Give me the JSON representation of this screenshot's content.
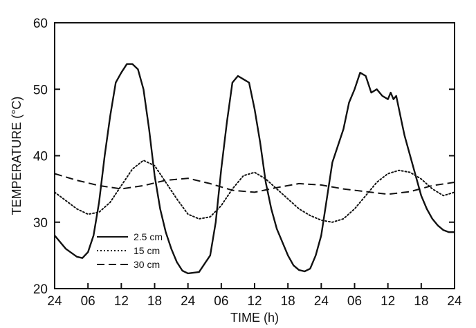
{
  "chart_data": {
    "type": "line",
    "xlabel": "TIME (h)",
    "ylabel": "TEMPERATURE (°C)",
    "ylim": [
      20,
      60
    ],
    "xlim": [
      0,
      72
    ],
    "x_tick_labels": [
      "24",
      "06",
      "12",
      "18",
      "24",
      "06",
      "12",
      "18",
      "24",
      "06",
      "12",
      "18",
      "24"
    ],
    "y_tick_labels": [
      "20",
      "30",
      "40",
      "50",
      "60"
    ],
    "grid": false,
    "legend_position": "lower-left",
    "series": [
      {
        "name": "2.5 cm",
        "style": "solid",
        "color": "#111111",
        "x": [
          0,
          2,
          4,
          5,
          6,
          7,
          8,
          9,
          10,
          11,
          12,
          13,
          14,
          15,
          16,
          17,
          18,
          19,
          20,
          21,
          22,
          23,
          24,
          26,
          28,
          29,
          30,
          31,
          32,
          33,
          34,
          35,
          36,
          37,
          38,
          38.5,
          39,
          39.5,
          40,
          41,
          42,
          43,
          44,
          45,
          46,
          47,
          48,
          50,
          52,
          53,
          54,
          55,
          56,
          57,
          58,
          59,
          60,
          60.5,
          61,
          61.5,
          62,
          62.5,
          63,
          63.5,
          64,
          65,
          66,
          67,
          68,
          69,
          70,
          71,
          72
        ],
        "values": [
          28,
          26,
          24.8,
          24.6,
          25.5,
          28,
          33,
          40,
          46,
          51,
          52.5,
          53.8,
          53.8,
          53,
          50,
          44,
          37,
          32,
          28.5,
          26,
          24,
          22.7,
          22.3,
          22.5,
          25,
          30,
          38,
          45,
          51,
          52,
          51.5,
          51,
          47,
          42,
          36,
          34,
          32,
          30.5,
          29,
          27,
          25,
          23.5,
          22.8,
          22.6,
          23,
          25,
          28,
          39,
          44,
          48,
          50,
          52.5,
          52,
          49.5,
          50,
          49,
          48.5,
          49.5,
          48.5,
          49,
          47,
          45,
          43,
          41.5,
          40,
          37,
          34,
          32,
          30.5,
          29.5,
          28.8,
          28.5,
          28.5
        ]
      },
      {
        "name": "15 cm",
        "style": "dotted",
        "color": "#111111",
        "x": [
          0,
          4,
          6,
          8,
          10,
          12,
          14,
          16,
          18,
          20,
          22,
          24,
          26,
          28,
          30,
          32,
          34,
          36,
          38,
          40,
          42,
          44,
          46,
          48,
          50,
          52,
          54,
          56,
          58,
          60,
          62,
          64,
          66,
          68,
          70,
          72
        ],
        "values": [
          34.5,
          32,
          31.2,
          31.5,
          33,
          35.5,
          38,
          39.3,
          38.5,
          36,
          33.5,
          31.2,
          30.5,
          30.8,
          32.5,
          35,
          37,
          37.5,
          36.5,
          35,
          33.5,
          32,
          31,
          30.3,
          30,
          30.5,
          32,
          34,
          36,
          37.3,
          37.8,
          37.5,
          36.5,
          35,
          34,
          34.5
        ]
      },
      {
        "name": "30 cm",
        "style": "dashed",
        "color": "#111111",
        "x": [
          0,
          4,
          8,
          12,
          16,
          20,
          24,
          28,
          32,
          36,
          40,
          44,
          48,
          52,
          56,
          60,
          64,
          68,
          72
        ],
        "values": [
          37.3,
          36.3,
          35.5,
          35,
          35.5,
          36.3,
          36.6,
          35.8,
          34.8,
          34.5,
          35.2,
          35.8,
          35.6,
          35,
          34.6,
          34.2,
          34.6,
          35.5,
          36
        ]
      }
    ]
  }
}
